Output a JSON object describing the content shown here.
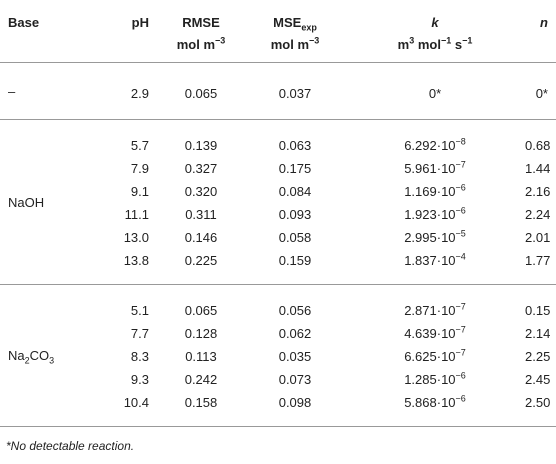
{
  "table": {
    "columns": [
      [
        [
          {
            "text": "Base"
          }
        ]
      ],
      [
        [
          {
            "text": "pH"
          }
        ]
      ],
      [
        [
          {
            "text": "RMSE"
          }
        ],
        [
          {
            "text": "mol m"
          },
          {
            "text": "−3",
            "format": "sup"
          }
        ]
      ],
      [
        [
          {
            "text": "MSE"
          },
          {
            "text": "exp",
            "format": "sub"
          }
        ],
        [
          {
            "text": "mol m"
          },
          {
            "text": "−3",
            "format": "sup"
          }
        ]
      ],
      [
        [
          {
            "text": "k",
            "format": "italic"
          }
        ],
        [
          {
            "text": "m"
          },
          {
            "text": "3",
            "format": "sup"
          },
          {
            "text": " mol"
          },
          {
            "text": "−1",
            "format": "sup"
          },
          {
            "text": " s"
          },
          {
            "text": "−1",
            "format": "sup"
          }
        ]
      ],
      [
        [
          {
            "text": "n",
            "format": "italic"
          }
        ]
      ]
    ],
    "groups": [
      {
        "base": "–",
        "rows": [
          [
            "2.9",
            "0.065",
            "0.037",
            "0*",
            "0*"
          ]
        ]
      },
      {
        "base": "NaOH",
        "rows": [
          [
            "5.7",
            "0.139",
            "0.063",
            [
              {
                "text": "6.292·10"
              },
              {
                "text": "−8",
                "format": "sup"
              }
            ],
            "0.68"
          ],
          [
            "7.9",
            "0.327",
            "0.175",
            [
              {
                "text": "5.961·10"
              },
              {
                "text": "−7",
                "format": "sup"
              }
            ],
            "1.44"
          ],
          [
            "9.1",
            "0.320",
            "0.084",
            [
              {
                "text": "1.169·10"
              },
              {
                "text": "−6",
                "format": "sup"
              }
            ],
            "2.16"
          ],
          [
            "11.1",
            "0.311",
            "0.093",
            [
              {
                "text": "1.923·10"
              },
              {
                "text": "−6",
                "format": "sup"
              }
            ],
            "2.24"
          ],
          [
            "13.0",
            "0.146",
            "0.058",
            [
              {
                "text": "2.995·10"
              },
              {
                "text": "−5",
                "format": "sup"
              }
            ],
            "2.01"
          ],
          [
            "13.8",
            "0.225",
            "0.159",
            [
              {
                "text": "1.837·10"
              },
              {
                "text": "−4",
                "format": "sup"
              }
            ],
            "1.77"
          ]
        ]
      },
      {
        "base": [
          {
            "text": "Na"
          },
          {
            "text": "2",
            "format": "sub"
          },
          {
            "text": "CO"
          },
          {
            "text": "3",
            "format": "sub"
          }
        ],
        "rows": [
          [
            "5.1",
            "0.065",
            "0.056",
            [
              {
                "text": "2.871·10"
              },
              {
                "text": "−7",
                "format": "sup"
              }
            ],
            "0.15"
          ],
          [
            "7.7",
            "0.128",
            "0.062",
            [
              {
                "text": "4.639·10"
              },
              {
                "text": "−7",
                "format": "sup"
              }
            ],
            "2.14"
          ],
          [
            "8.3",
            "0.113",
            "0.035",
            [
              {
                "text": "6.625·10"
              },
              {
                "text": "−7",
                "format": "sup"
              }
            ],
            "2.25"
          ],
          [
            "9.3",
            "0.242",
            "0.073",
            [
              {
                "text": "1.285·10"
              },
              {
                "text": "−6",
                "format": "sup"
              }
            ],
            "2.45"
          ],
          [
            "10.4",
            "0.158",
            "0.098",
            [
              {
                "text": "5.868·10"
              },
              {
                "text": "−6",
                "format": "sup"
              }
            ],
            "2.50"
          ]
        ]
      }
    ],
    "footnote": "*No detectable reaction."
  }
}
